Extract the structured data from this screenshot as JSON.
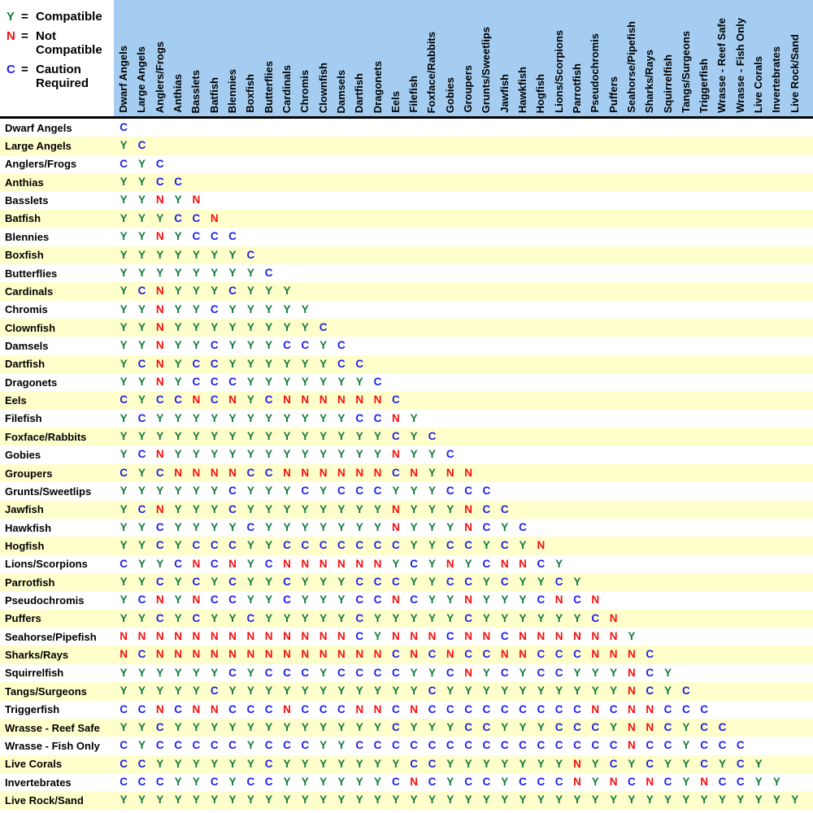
{
  "legend": [
    {
      "symbol": "Y",
      "label": "Compatible",
      "color_key": "compatible_green"
    },
    {
      "symbol": "N",
      "label": "Not Compatible",
      "color_key": "not_compatible_red"
    },
    {
      "symbol": "C",
      "label": "Caution Required",
      "color_key": "caution_blue"
    }
  ],
  "colors": {
    "compatible_green": "#107A3C",
    "not_compatible_red": "#F70D0D",
    "caution_blue": "#1E1EE8",
    "header_bg": "#A4CDF1",
    "row_stripe": "#FFFFCC",
    "divider": "#000000",
    "label_text": "#000000"
  },
  "chart_data": {
    "type": "table",
    "legend_codes": {
      "Y": "Compatible",
      "N": "Not Compatible",
      "C": "Caution Required"
    },
    "categories": [
      "Dwarf Angels",
      "Large Angels",
      "Anglers/Frogs",
      "Anthias",
      "Basslets",
      "Batfish",
      "Blennies",
      "Boxfish",
      "Butterflies",
      "Cardinals",
      "Chromis",
      "Clownfish",
      "Damsels",
      "Dartfish",
      "Dragonets",
      "Eels",
      "Filefish",
      "Foxface/Rabbits",
      "Gobies",
      "Groupers",
      "Grunts/Sweetlips",
      "Jawfish",
      "Hawkfish",
      "Hogfish",
      "Lions/Scorpions",
      "Parrotfish",
      "Pseudochromis",
      "Puffers",
      "Seahorse/Pipefish",
      "Sharks/Rays",
      "Squirrelfish",
      "Tangs/Surgeons",
      "Triggerfish",
      "Wrasse - Reef Safe",
      "Wrasse - Fish Only",
      "Live Corals",
      "Invertebrates",
      "Live Rock/Sand"
    ],
    "rows": [
      "C",
      "YC",
      "CYC",
      "YYCC",
      "YYNYN",
      "YYYCCN",
      "YYNYCCC",
      "YYYYYYYC",
      "YYYYYYYYC",
      "YCNYYYCYYY",
      "YYNYYCYYYYY",
      "YYNYYYYYYYYC",
      "YYNYYCYYYCCYC",
      "YCNYCCYYYYYYCC",
      "YYNYCCCYYYYYYYC",
      "CYCCNCNYCNNNNNNC",
      "YCYYYYYYYYYYYCCNY",
      "YYYYYYYYYYYYYYYCYC",
      "YCNYYYYYYYYYYYYNYYC",
      "CYCNNNNCCNNNNNNCNYNN",
      "YYYYYYCYYYCYCCCYYYCCC",
      "YCNYYYCYYYYYYYYNYYYNCC",
      "YYCYYYYCYYYYYYYNYYYNCYC",
      "YYCYCCCYYCCCCCCCYYCCYCYN",
      "CYYCNCNYCNNNNNNYCYNYCNNCY",
      "YYCYCYCYYCYYYCCCYYCCYCYYCY",
      "YCNYNCCYYCYYYCCNCYYNYYYCNCN",
      "YYCYCYYCYYYYYCYYYYYCYYYYYYCN",
      "NNNNNNNNNNNNNCYNNNCNNCNNNNNNY",
      "NCNNNNNNNNNNNNNCNCNCCNNCCCNNNC",
      "YYYYYYCYCCCYCCCCYYCNYCYCCYYYNCY",
      "YYYYYCYYYYYYYYYYYCYYYYYYYYYYNCYC",
      "CCNCNNCCCNCCCNNCNCCCCCCCCCNCNNCCC",
      "YYCYYYYYYYYYYYYCYYYCCYYYCCCYNNCYCC",
      "CYCCCCCYCCCYYCCCCCCCCCCCCCCCNCCYCCC",
      "CCYYYYYYCYYYYYYYCCYYYYYYYNYCYCYYCYCY",
      "CCCYYCYCCYYYYYYCNCYCCYCCCNYNCNCYNCCYY",
      "YYYYYYYYYYYYYYYYYYYYYYYYYYYYYYYYYYYYYY"
    ]
  }
}
